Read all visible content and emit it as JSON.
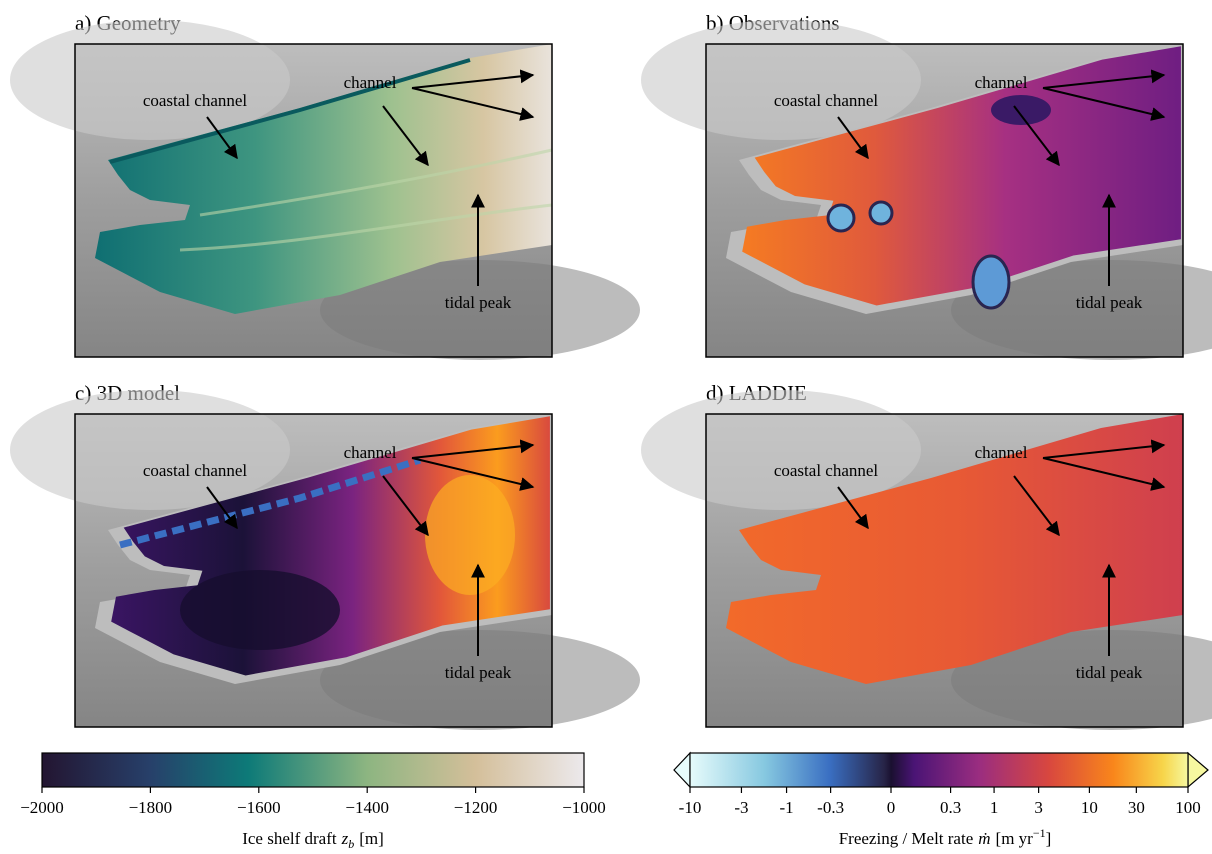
{
  "panels": [
    {
      "title": "a) Geometry",
      "coastal": "coastal channel",
      "channel": "channel",
      "tidal": "tidal peak"
    },
    {
      "title": "b) Observations",
      "coastal": "coastal channel",
      "channel": "channel",
      "tidal": "tidal peak"
    },
    {
      "title": "c) 3D model",
      "coastal": "coastal channel",
      "channel": "channel",
      "tidal": "tidal peak"
    },
    {
      "title": "d) LADDIE",
      "coastal": "coastal channel",
      "channel": "channel",
      "tidal": "tidal peak"
    }
  ],
  "colorbars": [
    {
      "label": "Ice shelf draft",
      "symbol": "z",
      "subscript": "b",
      "unit": "[m]",
      "lim": [
        -2000,
        -1000
      ],
      "ticks": [
        {
          "value": -2000,
          "label": "−2000"
        },
        {
          "value": -1800,
          "label": "−1800"
        },
        {
          "value": -1600,
          "label": "−1600"
        },
        {
          "value": -1400,
          "label": "−1400"
        },
        {
          "value": -1200,
          "label": "−1200"
        },
        {
          "value": -1000,
          "label": "−1000"
        }
      ]
    },
    {
      "label": "Freezing / Melt rate",
      "symbol": "ṁ",
      "unit": "[m yr",
      "superscript": "−1",
      "unit_end": "]",
      "lim": [
        -10,
        100
      ],
      "ticks": [
        -10,
        -3,
        -1,
        -0.3,
        0,
        0.3,
        1,
        3,
        10,
        30,
        100
      ]
    }
  ]
}
